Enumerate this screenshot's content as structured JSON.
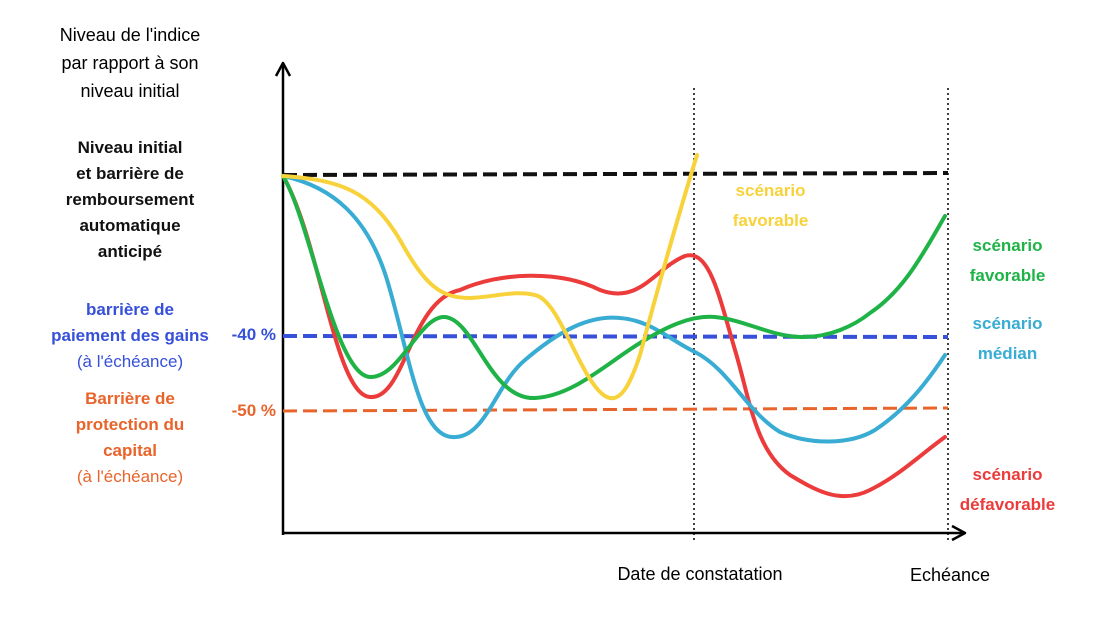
{
  "y_axis_title": [
    "Niveau de l'indice",
    "par rapport à son",
    "niveau initial"
  ],
  "x_axis_labels": {
    "observation_date": "Date de constatation",
    "maturity": "Echéance"
  },
  "left_labels": {
    "initial_level": [
      "Niveau initial",
      "et barrière de",
      "remboursement",
      "automatique",
      "anticipé"
    ],
    "gain_barrier": [
      "barrière de",
      "paiement des gains",
      "(à l'échéance)"
    ],
    "capital_barrier": [
      "Barrière de",
      "protection du",
      "capital",
      "(à l'échéance)"
    ]
  },
  "levels": {
    "gain_barrier": "-40 %",
    "capital_barrier": "-50 %"
  },
  "scenario_labels": {
    "yellow": [
      "scénario",
      "favorable"
    ],
    "green": [
      "scénario",
      "favorable"
    ],
    "blue": [
      "scénario",
      "médian"
    ],
    "red": [
      "scénario",
      "défavorable"
    ]
  },
  "colors": {
    "initial_level": "#111111",
    "gain_barrier": "#3650d9",
    "capital_barrier": "#e8642a",
    "yellow": "#f8d23a",
    "green": "#1fb347",
    "blue": "#38acd3",
    "red": "#ec3b3b",
    "axis": "#000000"
  }
}
